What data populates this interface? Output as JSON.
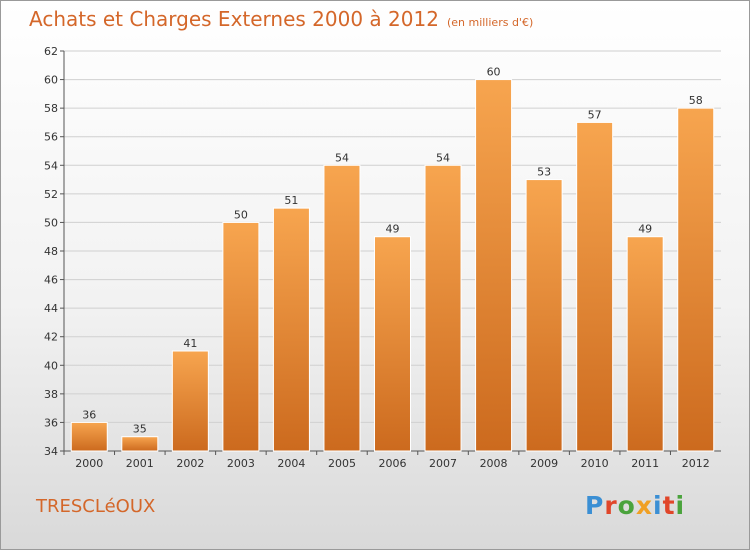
{
  "title": "Achats et Charges Externes 2000 à 2012",
  "unit_note": "(en milliers d'€)",
  "commune": "TRESCLéOUX",
  "brand": {
    "letters": [
      "P",
      "r",
      "o",
      "x",
      "i",
      "t",
      "i"
    ],
    "colors": [
      "#3b8fd4",
      "#e0462a",
      "#4aa33c",
      "#f0a024",
      "#3b8fd4",
      "#e0462a",
      "#4aa33c"
    ]
  },
  "colors": {
    "bar_light": "#f7a54f",
    "bar_dark": "#cc6a1e",
    "title": "#d4672a"
  },
  "chart_data": {
    "type": "bar",
    "categories": [
      "2000",
      "2001",
      "2002",
      "2003",
      "2004",
      "2005",
      "2006",
      "2007",
      "2008",
      "2009",
      "2010",
      "2011",
      "2012"
    ],
    "values": [
      36,
      35,
      41,
      50,
      51,
      54,
      49,
      54,
      60,
      53,
      57,
      49,
      58
    ],
    "ylim": [
      34,
      62
    ],
    "yticks": [
      34,
      36,
      38,
      40,
      42,
      44,
      46,
      48,
      50,
      52,
      54,
      56,
      58,
      60,
      62
    ],
    "grid": true
  }
}
